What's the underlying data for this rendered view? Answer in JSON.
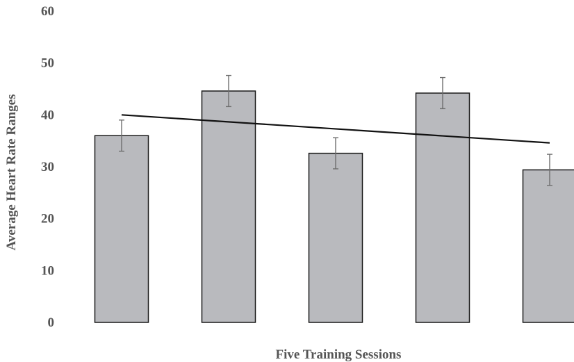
{
  "chart_data": {
    "type": "bar",
    "title": "",
    "xlabel": "Five Training Sessions",
    "ylabel": "Average Heart Rate Ranges",
    "categories": [
      "",
      "",
      "",
      "",
      ""
    ],
    "values": [
      36.0,
      44.6,
      32.6,
      44.2,
      29.4
    ],
    "error_bars": [
      3.0,
      3.0,
      3.0,
      3.0,
      3.0
    ],
    "trendline": {
      "type": "linear",
      "start": 40.0,
      "end": 34.6
    },
    "ylim": [
      0,
      60
    ],
    "yticks": [
      0,
      10,
      20,
      30,
      40,
      50,
      60
    ],
    "grid": false,
    "legend": "none",
    "colors": {
      "bar": "#b9babe",
      "bar_stroke": "#1a1a1a",
      "error": "#6e6e6e",
      "trend": "#111111",
      "text": "#555555"
    }
  }
}
